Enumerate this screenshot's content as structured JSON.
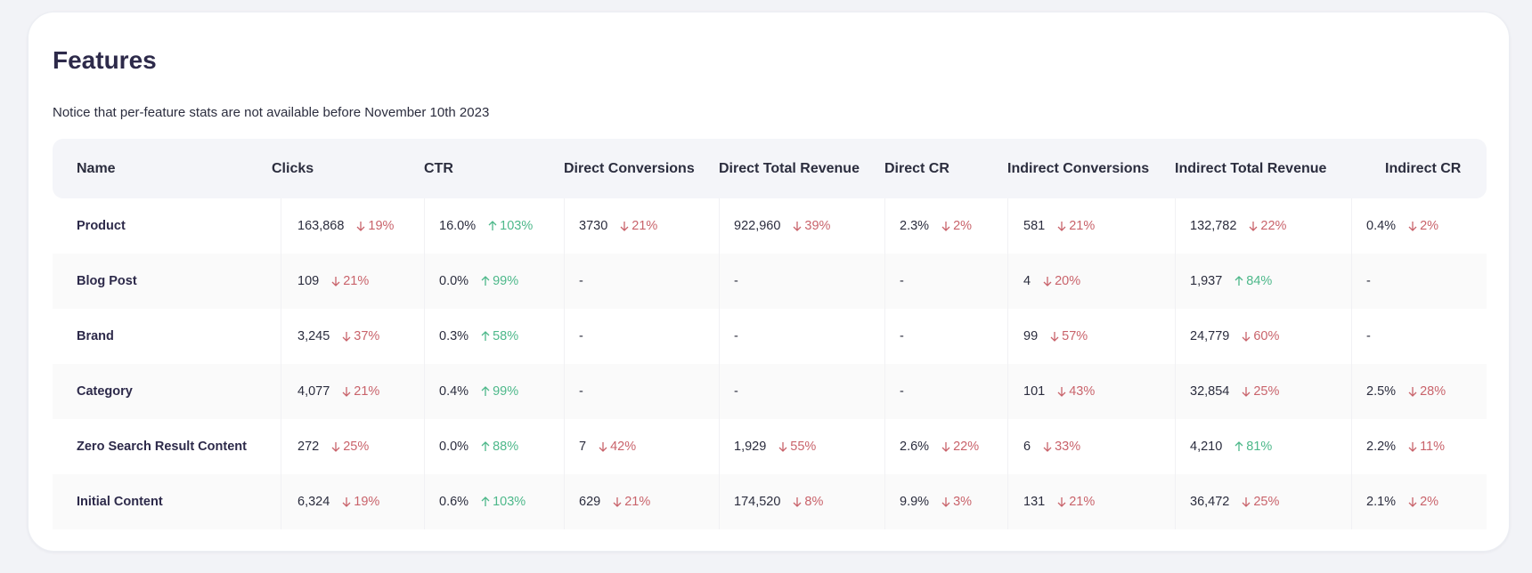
{
  "title": "Features",
  "notice": "Notice that per-feature stats are not available before November 10th 2023",
  "colors": {
    "down": "#c9636b",
    "up": "#4db88a",
    "heading": "#2d2a4a"
  },
  "columns": [
    "Name",
    "Clicks",
    "CTR",
    "Direct Conversions",
    "Direct Total Revenue",
    "Direct CR",
    "Indirect Conversions",
    "Indirect Total Revenue",
    "Indirect CR"
  ],
  "rows": [
    {
      "name": "Product",
      "cells": [
        {
          "value": "163,868",
          "delta": "19%",
          "dir": "down"
        },
        {
          "value": "16.0%",
          "delta": "103%",
          "dir": "up"
        },
        {
          "value": "3730",
          "delta": "21%",
          "dir": "down"
        },
        {
          "value": "922,960",
          "delta": "39%",
          "dir": "down"
        },
        {
          "value": "2.3%",
          "delta": "2%",
          "dir": "down"
        },
        {
          "value": "581",
          "delta": "21%",
          "dir": "down"
        },
        {
          "value": "132,782",
          "delta": "22%",
          "dir": "down"
        },
        {
          "value": "0.4%",
          "delta": "2%",
          "dir": "down"
        }
      ]
    },
    {
      "name": "Blog Post",
      "cells": [
        {
          "value": "109",
          "delta": "21%",
          "dir": "down"
        },
        {
          "value": "0.0%",
          "delta": "99%",
          "dir": "up"
        },
        {
          "value": "-"
        },
        {
          "value": "-"
        },
        {
          "value": "-"
        },
        {
          "value": "4",
          "delta": "20%",
          "dir": "down"
        },
        {
          "value": "1,937",
          "delta": "84%",
          "dir": "up"
        },
        {
          "value": "-"
        }
      ]
    },
    {
      "name": "Brand",
      "cells": [
        {
          "value": "3,245",
          "delta": "37%",
          "dir": "down"
        },
        {
          "value": "0.3%",
          "delta": "58%",
          "dir": "up"
        },
        {
          "value": "-"
        },
        {
          "value": "-"
        },
        {
          "value": "-"
        },
        {
          "value": "99",
          "delta": "57%",
          "dir": "down"
        },
        {
          "value": "24,779",
          "delta": "60%",
          "dir": "down"
        },
        {
          "value": "-"
        }
      ]
    },
    {
      "name": "Category",
      "cells": [
        {
          "value": "4,077",
          "delta": "21%",
          "dir": "down"
        },
        {
          "value": "0.4%",
          "delta": "99%",
          "dir": "up"
        },
        {
          "value": "-"
        },
        {
          "value": "-"
        },
        {
          "value": "-"
        },
        {
          "value": "101",
          "delta": "43%",
          "dir": "down"
        },
        {
          "value": "32,854",
          "delta": "25%",
          "dir": "down"
        },
        {
          "value": "2.5%",
          "delta": "28%",
          "dir": "down"
        }
      ]
    },
    {
      "name": "Zero Search Result Content",
      "cells": [
        {
          "value": "272",
          "delta": "25%",
          "dir": "down"
        },
        {
          "value": "0.0%",
          "delta": "88%",
          "dir": "up"
        },
        {
          "value": "7",
          "delta": "42%",
          "dir": "down"
        },
        {
          "value": "1,929",
          "delta": "55%",
          "dir": "down"
        },
        {
          "value": "2.6%",
          "delta": "22%",
          "dir": "down"
        },
        {
          "value": "6",
          "delta": "33%",
          "dir": "down"
        },
        {
          "value": "4,210",
          "delta": "81%",
          "dir": "up"
        },
        {
          "value": "2.2%",
          "delta": "11%",
          "dir": "down"
        }
      ]
    },
    {
      "name": "Initial Content",
      "cells": [
        {
          "value": "6,324",
          "delta": "19%",
          "dir": "down"
        },
        {
          "value": "0.6%",
          "delta": "103%",
          "dir": "up"
        },
        {
          "value": "629",
          "delta": "21%",
          "dir": "down"
        },
        {
          "value": "174,520",
          "delta": "8%",
          "dir": "down"
        },
        {
          "value": "9.9%",
          "delta": "3%",
          "dir": "down"
        },
        {
          "value": "131",
          "delta": "21%",
          "dir": "down"
        },
        {
          "value": "36,472",
          "delta": "25%",
          "dir": "down"
        },
        {
          "value": "2.1%",
          "delta": "2%",
          "dir": "down"
        }
      ]
    }
  ]
}
